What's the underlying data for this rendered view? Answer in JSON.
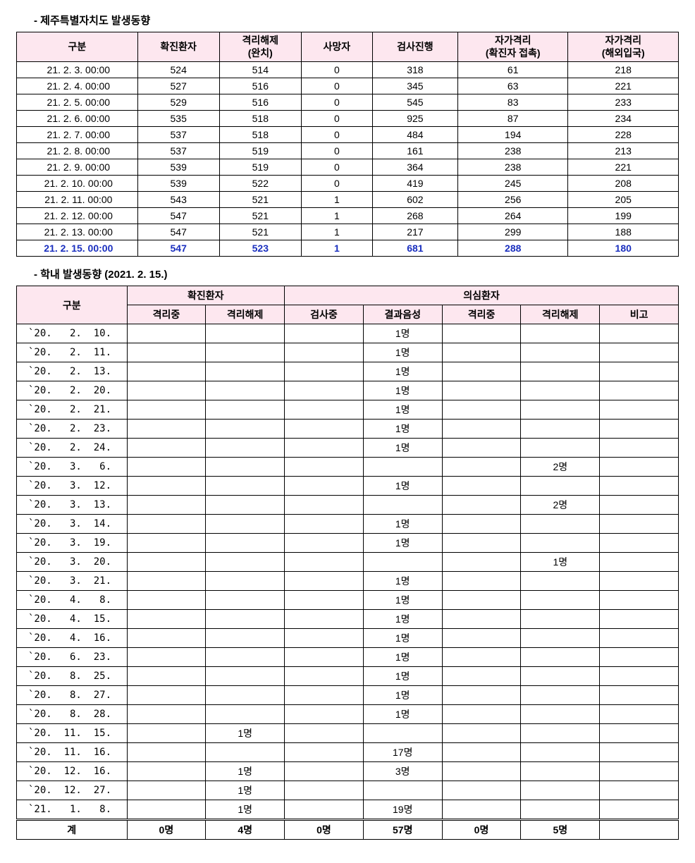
{
  "section1": {
    "title": "- 제주특별자치도 발생동향",
    "headers": [
      "구분",
      "확진환자",
      "격리해제\n(완치)",
      "사망자",
      "검사진행",
      "자가격리\n(확진자 접촉)",
      "자가격리\n(해외입국)"
    ],
    "col_widths": [
      "170",
      "115",
      "115",
      "100",
      "120",
      "155",
      "155"
    ],
    "rows": [
      {
        "date": "21.  2.   3.  00:00",
        "c": [
          "524",
          "514",
          "0",
          "318",
          "61",
          "218"
        ]
      },
      {
        "date": "21.  2.   4.  00:00",
        "c": [
          "527",
          "516",
          "0",
          "345",
          "63",
          "221"
        ]
      },
      {
        "date": "21.  2.   5.  00:00",
        "c": [
          "529",
          "516",
          "0",
          "545",
          "83",
          "233"
        ]
      },
      {
        "date": "21.  2.   6.  00:00",
        "c": [
          "535",
          "518",
          "0",
          "925",
          "87",
          "234"
        ]
      },
      {
        "date": "21.  2.   7.  00:00",
        "c": [
          "537",
          "518",
          "0",
          "484",
          "194",
          "228"
        ]
      },
      {
        "date": "21.  2.   8.  00:00",
        "c": [
          "537",
          "519",
          "0",
          "161",
          "238",
          "213"
        ]
      },
      {
        "date": "21.  2.   9.  00:00",
        "c": [
          "539",
          "519",
          "0",
          "364",
          "238",
          "221"
        ]
      },
      {
        "date": "21.  2.  10.  00:00",
        "c": [
          "539",
          "522",
          "0",
          "419",
          "245",
          "208"
        ]
      },
      {
        "date": "21.  2.  11.  00:00",
        "c": [
          "543",
          "521",
          "1",
          "602",
          "256",
          "205"
        ]
      },
      {
        "date": "21.  2.  12.  00:00",
        "c": [
          "547",
          "521",
          "1",
          "268",
          "264",
          "199"
        ]
      },
      {
        "date": "21.  2.  13.  00:00",
        "c": [
          "547",
          "521",
          "1",
          "217",
          "299",
          "188"
        ]
      },
      {
        "date": "21.  2.  15.  00:00",
        "c": [
          "547",
          "523",
          "1",
          "681",
          "288",
          "180"
        ],
        "hl": true
      }
    ]
  },
  "section2": {
    "title": "- 학내 발생동향 (2021. 2. 15.)",
    "header_row1": [
      "구분",
      "확진환자",
      "의심환자"
    ],
    "header_row2": [
      "격리중",
      "격리해제",
      "검사중",
      "결과음성",
      "격리중",
      "격리해제",
      "비고"
    ],
    "col_widths": [
      "140",
      "100",
      "100",
      "100",
      "100",
      "100",
      "100",
      "100"
    ],
    "rows": [
      {
        "d": "`20.   2.  10.",
        "c": [
          "",
          "",
          "",
          "1명",
          "",
          "",
          ""
        ]
      },
      {
        "d": "`20.   2.  11.",
        "c": [
          "",
          "",
          "",
          "1명",
          "",
          "",
          ""
        ]
      },
      {
        "d": "`20.   2.  13.",
        "c": [
          "",
          "",
          "",
          "1명",
          "",
          "",
          ""
        ]
      },
      {
        "d": "`20.   2.  20.",
        "c": [
          "",
          "",
          "",
          "1명",
          "",
          "",
          ""
        ]
      },
      {
        "d": "`20.   2.  21.",
        "c": [
          "",
          "",
          "",
          "1명",
          "",
          "",
          ""
        ]
      },
      {
        "d": "`20.   2.  23.",
        "c": [
          "",
          "",
          "",
          "1명",
          "",
          "",
          ""
        ]
      },
      {
        "d": "`20.   2.  24.",
        "c": [
          "",
          "",
          "",
          "1명",
          "",
          "",
          ""
        ]
      },
      {
        "d": "`20.   3.   6.",
        "c": [
          "",
          "",
          "",
          "",
          "",
          "2명",
          ""
        ]
      },
      {
        "d": "`20.   3.  12.",
        "c": [
          "",
          "",
          "",
          "1명",
          "",
          "",
          ""
        ]
      },
      {
        "d": "`20.   3.  13.",
        "c": [
          "",
          "",
          "",
          "",
          "",
          "2명",
          ""
        ]
      },
      {
        "d": "`20.   3.  14.",
        "c": [
          "",
          "",
          "",
          "1명",
          "",
          "",
          ""
        ]
      },
      {
        "d": "`20.   3.  19.",
        "c": [
          "",
          "",
          "",
          "1명",
          "",
          "",
          ""
        ]
      },
      {
        "d": "`20.   3.  20.",
        "c": [
          "",
          "",
          "",
          "",
          "",
          "1명",
          ""
        ]
      },
      {
        "d": "`20.   3.  21.",
        "c": [
          "",
          "",
          "",
          "1명",
          "",
          "",
          ""
        ]
      },
      {
        "d": "`20.   4.   8.",
        "c": [
          "",
          "",
          "",
          "1명",
          "",
          "",
          ""
        ]
      },
      {
        "d": "`20.   4.  15.",
        "c": [
          "",
          "",
          "",
          "1명",
          "",
          "",
          ""
        ]
      },
      {
        "d": "`20.   4.  16.",
        "c": [
          "",
          "",
          "",
          "1명",
          "",
          "",
          ""
        ]
      },
      {
        "d": "`20.   6.  23.",
        "c": [
          "",
          "",
          "",
          "1명",
          "",
          "",
          ""
        ]
      },
      {
        "d": "`20.   8.  25.",
        "c": [
          "",
          "",
          "",
          "1명",
          "",
          "",
          ""
        ]
      },
      {
        "d": "`20.   8.  27.",
        "c": [
          "",
          "",
          "",
          "1명",
          "",
          "",
          ""
        ]
      },
      {
        "d": "`20.   8.  28.",
        "c": [
          "",
          "",
          "",
          "1명",
          "",
          "",
          ""
        ]
      },
      {
        "d": "`20.  11.  15.",
        "c": [
          "",
          "1명",
          "",
          "",
          "",
          "",
          ""
        ]
      },
      {
        "d": "`20.  11.  16.",
        "c": [
          "",
          "",
          "",
          "17명",
          "",
          "",
          ""
        ]
      },
      {
        "d": "`20.  12.  16.",
        "c": [
          "",
          "1명",
          "",
          "3명",
          "",
          "",
          ""
        ]
      },
      {
        "d": "`20.  12.  27.",
        "c": [
          "",
          "1명",
          "",
          "",
          "",
          "",
          ""
        ]
      },
      {
        "d": "`21.   1.   8.",
        "c": [
          "",
          "1명",
          "",
          "19명",
          "",
          "",
          ""
        ]
      }
    ],
    "total": {
      "label": "계",
      "c": [
        "0명",
        "4명",
        "0명",
        "57명",
        "0명",
        "5명",
        ""
      ]
    }
  },
  "colors": {
    "header_bg": "#fde7ef",
    "highlight_text": "#1a2fbf",
    "border": "#000000",
    "background": "#ffffff"
  }
}
